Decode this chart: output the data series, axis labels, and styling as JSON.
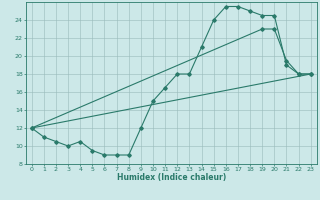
{
  "title": "",
  "xlabel": "Humidex (Indice chaleur)",
  "bg_color": "#cce8e8",
  "grid_color": "#99bbbb",
  "line_color": "#2a7a6a",
  "xlim": [
    -0.5,
    23.5
  ],
  "ylim": [
    8,
    26
  ],
  "xticks": [
    0,
    1,
    2,
    3,
    4,
    5,
    6,
    7,
    8,
    9,
    10,
    11,
    12,
    13,
    14,
    15,
    16,
    17,
    18,
    19,
    20,
    21,
    22,
    23
  ],
  "yticks": [
    8,
    10,
    12,
    14,
    16,
    18,
    20,
    22,
    24
  ],
  "line1_x": [
    0,
    1,
    2,
    3,
    4,
    5,
    6,
    7,
    8,
    9,
    10,
    11,
    12,
    13,
    14,
    15,
    16,
    17,
    18,
    19,
    20,
    21,
    22,
    23
  ],
  "line1_y": [
    12,
    11,
    10.5,
    10,
    10.5,
    9.5,
    9,
    9,
    9,
    12,
    15,
    16.5,
    18,
    18,
    21,
    24,
    25.5,
    25.5,
    25,
    24.5,
    24.5,
    19,
    18,
    18
  ],
  "line2_x": [
    0,
    23
  ],
  "line2_y": [
    12,
    18
  ],
  "line3_x": [
    0,
    19,
    20,
    21,
    22,
    23
  ],
  "line3_y": [
    12,
    23,
    23,
    19.5,
    18,
    18
  ]
}
